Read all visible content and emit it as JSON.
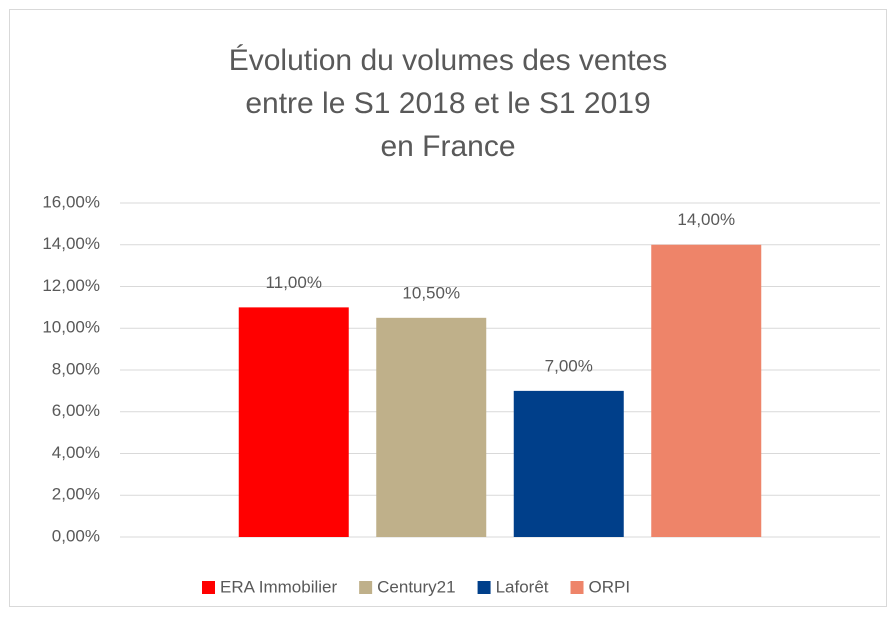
{
  "chart_data": {
    "type": "bar",
    "title": [
      "Évolution du volumes des ventes",
      "entre le S1 2018 et le S1 2019",
      "en France"
    ],
    "categories": [
      null
    ],
    "series": [
      {
        "name": "ERA Immobilier",
        "color": "#ff0000",
        "values": [
          11
        ],
        "value_labels": [
          "11,00%"
        ]
      },
      {
        "name": "Century21",
        "color": "#bfb08a",
        "values": [
          10.5
        ],
        "value_labels": [
          "10,50%"
        ]
      },
      {
        "name": "Laforêt",
        "color": "#003f8a",
        "values": [
          7
        ],
        "value_labels": [
          "7,00%"
        ]
      },
      {
        "name": "ORPI",
        "color": "#ee8469",
        "values": [
          14
        ],
        "value_labels": [
          "14,00%"
        ]
      }
    ],
    "ylim": [
      0,
      16
    ],
    "yticks": [
      {
        "value": 0,
        "label": "0,00%"
      },
      {
        "value": 2,
        "label": "2,00%"
      },
      {
        "value": 4,
        "label": "4,00%"
      },
      {
        "value": 6,
        "label": "6,00%"
      },
      {
        "value": 8,
        "label": "8,00%"
      },
      {
        "value": 10,
        "label": "10,00%"
      },
      {
        "value": 12,
        "label": "12,00%"
      },
      {
        "value": 14,
        "label": "14,00%"
      },
      {
        "value": 16,
        "label": "16,00%"
      }
    ],
    "grid": true,
    "legend": "bottom"
  }
}
